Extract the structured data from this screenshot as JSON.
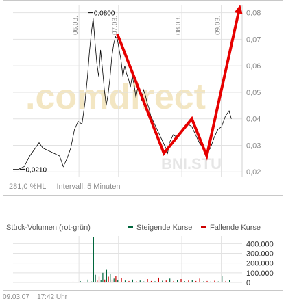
{
  "price_chart": {
    "chart_data": {
      "type": "line",
      "x_ticks": [
        "06.03.",
        "07.03.",
        "08.03.",
        "09.03."
      ],
      "y_ticks": [
        "0,08",
        "0,07",
        "0,06",
        "0,05",
        "0,04",
        "0,03",
        "0,02"
      ],
      "ylim": [
        0.018,
        0.083
      ],
      "annotations": {
        "high": "0,0800",
        "low": "0,0210"
      },
      "series": [
        {
          "values": [
            [
              0.0,
              0.021
            ],
            [
              1.5,
              0.021
            ],
            [
              3.0,
              0.022
            ],
            [
              4.5,
              0.026
            ],
            [
              6.0,
              0.029
            ],
            [
              7.0,
              0.031
            ],
            [
              8.0,
              0.029
            ],
            [
              9.5,
              0.028
            ],
            [
              11.0,
              0.027
            ],
            [
              12.5,
              0.026
            ],
            [
              13.5,
              0.022
            ],
            [
              14.5,
              0.025
            ],
            [
              15.5,
              0.029
            ],
            [
              16.5,
              0.036
            ],
            [
              17.5,
              0.039
            ],
            [
              18.5,
              0.038
            ],
            [
              19.3,
              0.046
            ],
            [
              20.0,
              0.056
            ],
            [
              20.5,
              0.065
            ],
            [
              21.0,
              0.072
            ],
            [
              21.5,
              0.078
            ],
            [
              22.0,
              0.069
            ],
            [
              22.5,
              0.061
            ],
            [
              23.0,
              0.056
            ],
            [
              23.5,
              0.066
            ],
            [
              24.0,
              0.059
            ],
            [
              24.5,
              0.051
            ],
            [
              25.0,
              0.045
            ],
            [
              25.5,
              0.049
            ],
            [
              26.0,
              0.055
            ],
            [
              26.5,
              0.063
            ],
            [
              27.0,
              0.068
            ],
            [
              27.5,
              0.071
            ],
            [
              28.0,
              0.07
            ],
            [
              28.5,
              0.066
            ],
            [
              29.0,
              0.062
            ],
            [
              29.5,
              0.056
            ],
            [
              30.0,
              0.06
            ],
            [
              30.5,
              0.057
            ],
            [
              31.0,
              0.055
            ],
            [
              31.5,
              0.052
            ],
            [
              32.0,
              0.056
            ],
            [
              32.5,
              0.053
            ],
            [
              33.0,
              0.048
            ],
            [
              33.5,
              0.052
            ],
            [
              34.0,
              0.05
            ],
            [
              34.5,
              0.047
            ],
            [
              35.0,
              0.051
            ],
            [
              35.5,
              0.049
            ],
            [
              36.0,
              0.046
            ],
            [
              36.5,
              0.044
            ],
            [
              37.0,
              0.041
            ],
            [
              38.0,
              0.038
            ],
            [
              39.0,
              0.035
            ],
            [
              40.0,
              0.032
            ],
            [
              41.0,
              0.029
            ],
            [
              41.5,
              0.027
            ],
            [
              42.0,
              0.031
            ],
            [
              43.0,
              0.034
            ],
            [
              44.0,
              0.033
            ],
            [
              45.0,
              0.035
            ],
            [
              46.0,
              0.037
            ],
            [
              47.0,
              0.038
            ],
            [
              48.0,
              0.037
            ],
            [
              49.0,
              0.034
            ],
            [
              50.0,
              0.031
            ],
            [
              51.0,
              0.029
            ],
            [
              52.0,
              0.027
            ],
            [
              53.0,
              0.029
            ],
            [
              54.0,
              0.033
            ],
            [
              55.0,
              0.036
            ],
            [
              56.0,
              0.037
            ],
            [
              57.0,
              0.041
            ],
            [
              58.0,
              0.043
            ],
            [
              58.6,
              0.04
            ]
          ]
        }
      ]
    },
    "overlay_arrow": [
      [
        28.0,
        0.072
      ],
      [
        40.5,
        0.027
      ],
      [
        48.0,
        0.04
      ],
      [
        52.0,
        0.026
      ],
      [
        61.0,
        0.083
      ]
    ],
    "watermark": ".comdirect",
    "symbol": "BNI.STU",
    "hl_text": "281,0 %HL",
    "interval_text": "Intervall: 5 Minuten"
  },
  "volume_chart": {
    "chart_data": {
      "type": "bar",
      "title": "Stück-Volumen (rot-grün)",
      "legend": {
        "rising": "Steigende Kurse",
        "falling": "Fallende Kurse"
      },
      "y_ticks": [
        "400.000",
        "300.000",
        "200.000",
        "100.000",
        "0"
      ],
      "ylim": [
        0,
        480000
      ],
      "bars": [
        [
          2,
          4000,
          "g"
        ],
        [
          5,
          6000,
          "r"
        ],
        [
          8,
          3000,
          "g"
        ],
        [
          11,
          5000,
          "r"
        ],
        [
          14,
          4000,
          "g"
        ],
        [
          16,
          8000,
          "r"
        ],
        [
          18,
          12000,
          "g"
        ],
        [
          19,
          5000,
          "r"
        ],
        [
          20,
          30000,
          "g"
        ],
        [
          21,
          9000,
          "g"
        ],
        [
          21.5,
          470000,
          "g"
        ],
        [
          22,
          80000,
          "g"
        ],
        [
          22.5,
          20000,
          "r"
        ],
        [
          23,
          60000,
          "r"
        ],
        [
          23.5,
          25000,
          "g"
        ],
        [
          24,
          100000,
          "g"
        ],
        [
          24.5,
          30000,
          "r"
        ],
        [
          25,
          130000,
          "g"
        ],
        [
          25.5,
          60000,
          "r"
        ],
        [
          26,
          90000,
          "g"
        ],
        [
          26.5,
          30000,
          "r"
        ],
        [
          27,
          40000,
          "g"
        ],
        [
          27.5,
          70000,
          "r"
        ],
        [
          28,
          25000,
          "g"
        ],
        [
          29,
          45000,
          "r"
        ],
        [
          30,
          20000,
          "g"
        ],
        [
          31,
          15000,
          "r"
        ],
        [
          32,
          30000,
          "g"
        ],
        [
          33,
          12000,
          "r"
        ],
        [
          34,
          20000,
          "g"
        ],
        [
          35,
          10000,
          "g"
        ],
        [
          36,
          35000,
          "r"
        ],
        [
          37,
          15000,
          "r"
        ],
        [
          38,
          12000,
          "g"
        ],
        [
          39,
          50000,
          "r"
        ],
        [
          40,
          18000,
          "g"
        ],
        [
          41,
          20000,
          "r"
        ],
        [
          42,
          40000,
          "g"
        ],
        [
          43,
          15000,
          "r"
        ],
        [
          44,
          25000,
          "g"
        ],
        [
          45,
          35000,
          "r"
        ],
        [
          46,
          12000,
          "g"
        ],
        [
          47,
          20000,
          "r"
        ],
        [
          48,
          28000,
          "g"
        ],
        [
          49,
          15000,
          "r"
        ],
        [
          50,
          40000,
          "r"
        ],
        [
          51,
          10000,
          "g"
        ],
        [
          52,
          15000,
          "r"
        ],
        [
          53,
          12000,
          "g"
        ],
        [
          54,
          18000,
          "r"
        ],
        [
          55,
          10000,
          "g"
        ],
        [
          56,
          70000,
          "g"
        ],
        [
          57,
          15000,
          "r"
        ],
        [
          58,
          25000,
          "g"
        ]
      ]
    }
  },
  "footer": {
    "date": "09.03.07",
    "time": "17:42 Uhr"
  },
  "colors": {
    "price_line": "#000000",
    "arrow": "#e60000",
    "rising": "#00663c",
    "falling": "#cc0000",
    "grid": "#e2e2e2",
    "axis_text": "#8a8a8a"
  }
}
